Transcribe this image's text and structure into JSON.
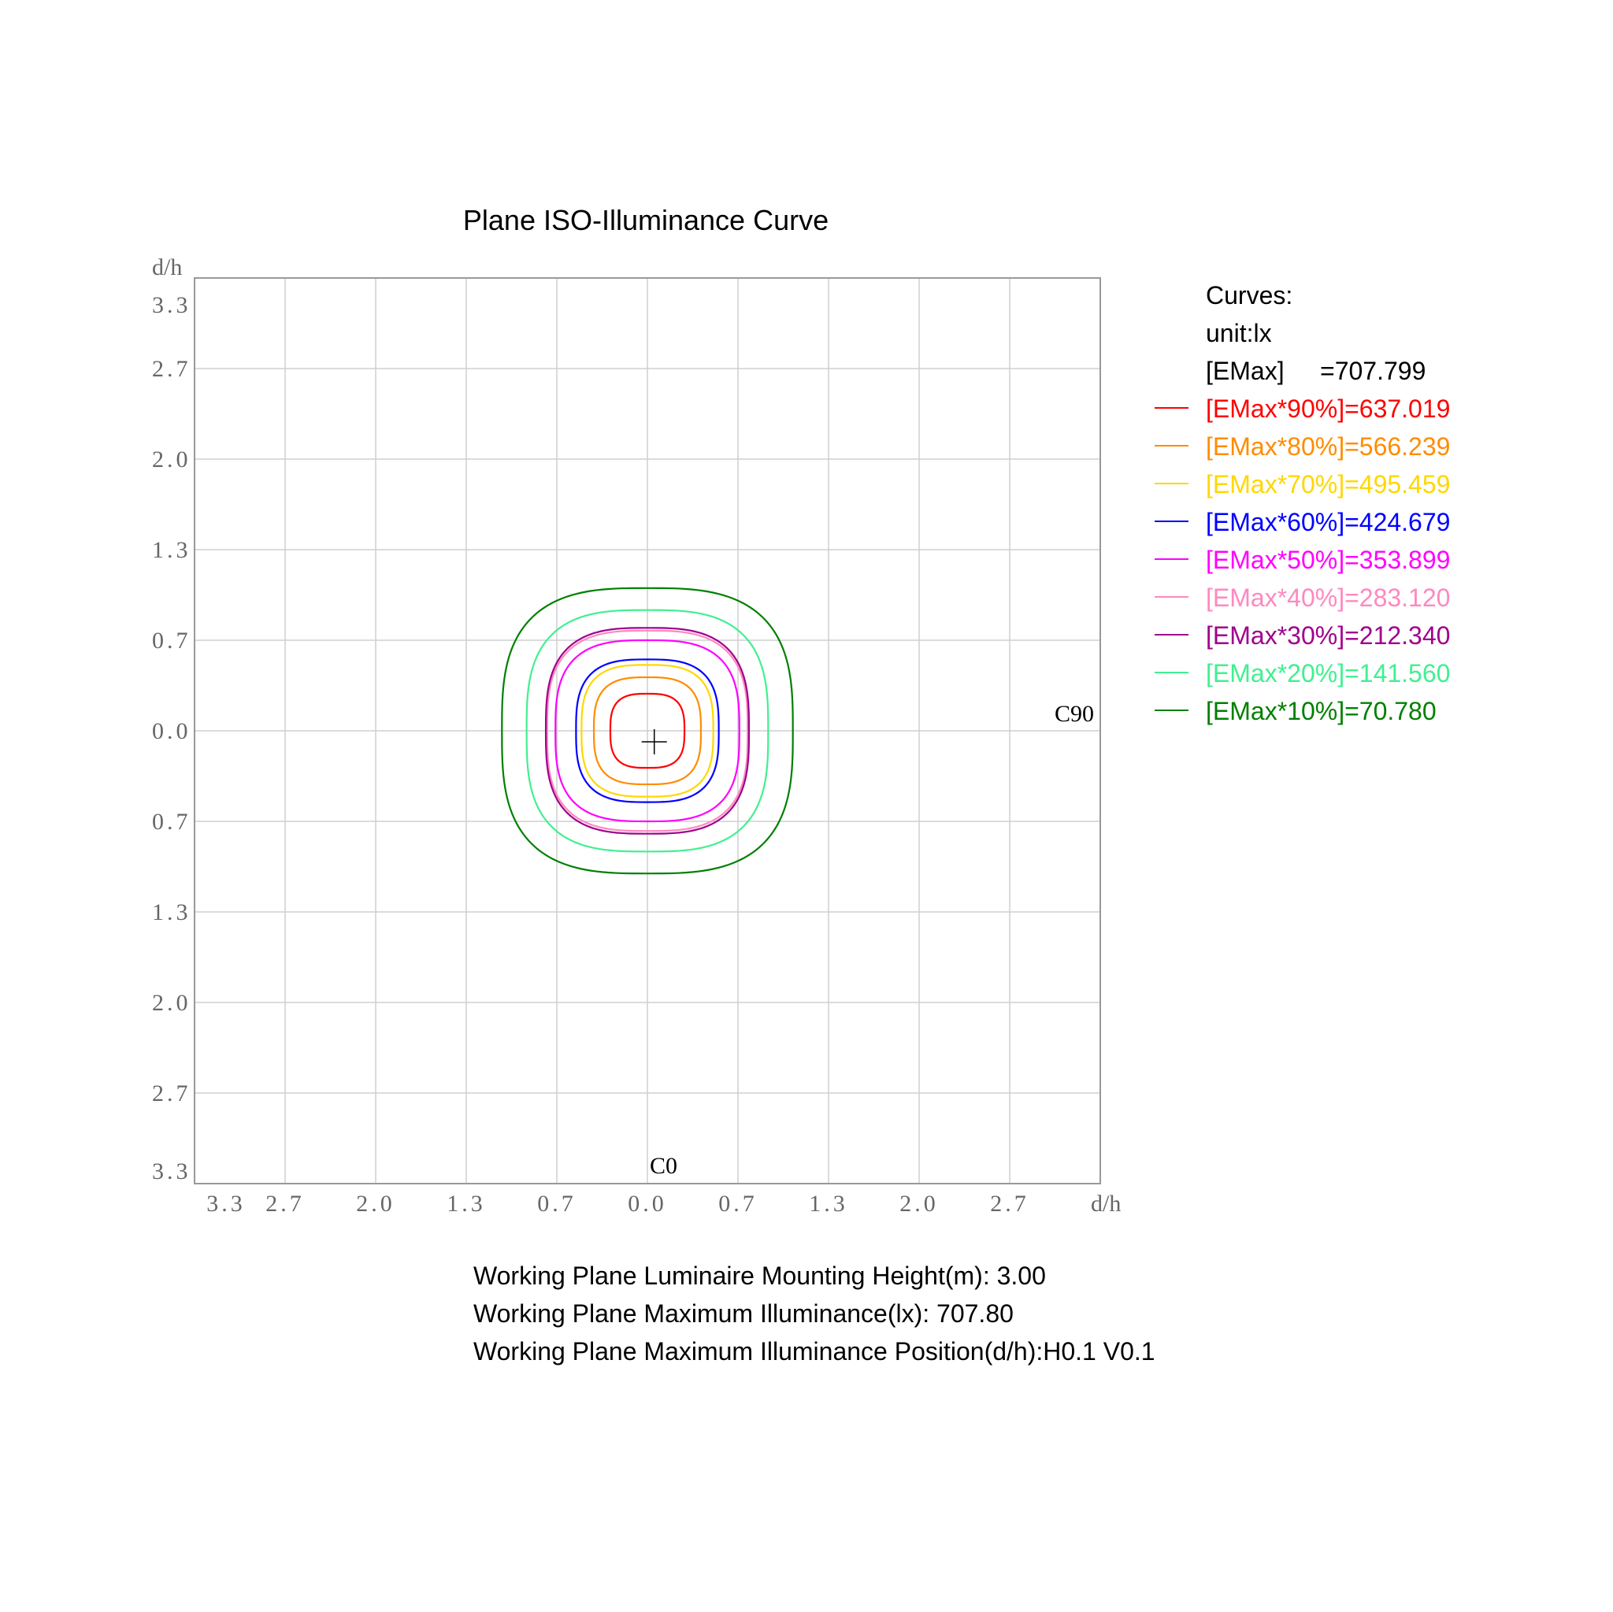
{
  "chart_data": {
    "type": "contour",
    "title": "Plane ISO-Illuminance Curve",
    "x_axis": {
      "label": "d/h",
      "tick_labels": [
        "3.3",
        "2.7",
        "2.0",
        "1.3",
        "0.7",
        "0.0",
        "0.7",
        "1.3",
        "2.0",
        "2.7"
      ],
      "range": [
        -3.3,
        3.3
      ],
      "direction_label": "C90"
    },
    "y_axis": {
      "label": "d/h",
      "tick_labels": [
        "3.3",
        "2.7",
        "2.0",
        "1.3",
        "0.7",
        "0.0",
        "0.7",
        "1.3",
        "2.0",
        "2.7",
        "3.3"
      ],
      "range": [
        -3.3,
        3.3
      ],
      "direction_label": "C0"
    },
    "grid": true,
    "legend": {
      "position": "right",
      "header": "Curves:",
      "unit": "unit:lx",
      "emax_label": "[EMax]",
      "emax_value": "=707.799",
      "entries": [
        {
          "label": "[EMax*90%]=637.019",
          "color": "#ff0000",
          "value": 637.019,
          "half_width": 0.27,
          "half_height": 0.27,
          "cx": 0.0,
          "cy": 0.0
        },
        {
          "label": "[EMax*80%]=566.239",
          "color": "#ff8c00",
          "value": 566.239,
          "half_width": 0.39,
          "half_height": 0.39,
          "cx": 0.0,
          "cy": 0.0
        },
        {
          "label": "[EMax*70%]=495.459",
          "color": "#ffd700",
          "value": 495.459,
          "half_width": 0.48,
          "half_height": 0.48,
          "cx": 0.0,
          "cy": 0.0
        },
        {
          "label": "[EMax*60%]=424.679",
          "color": "#0000ff",
          "value": 424.679,
          "half_width": 0.52,
          "half_height": 0.52,
          "cx": 0.0,
          "cy": 0.0
        },
        {
          "label": "[EMax*50%]=353.899",
          "color": "#ff00ff",
          "value": 353.899,
          "half_width": 0.67,
          "half_height": 0.66,
          "cx": 0.0,
          "cy": 0.0
        },
        {
          "label": "[EMax*40%]=283.120",
          "color": "#ff88c0",
          "value": 283.12,
          "half_width": 0.73,
          "half_height": 0.73,
          "cx": 0.0,
          "cy": 0.0
        },
        {
          "label": "[EMax*30%]=212.340",
          "color": "#a0008c",
          "value": 212.34,
          "half_width": 0.74,
          "half_height": 0.75,
          "cx": 0.0,
          "cy": 0.0
        },
        {
          "label": "[EMax*20%]=141.560",
          "color": "#40f090",
          "value": 141.56,
          "half_width": 0.88,
          "half_height": 0.88,
          "cx": 0.0,
          "cy": 0.0
        },
        {
          "label": "[EMax*10%]=70.780",
          "color": "#008000",
          "value": 70.78,
          "half_width": 1.06,
          "half_height": 1.04,
          "cx": 0.0,
          "cy": 0.0
        }
      ]
    },
    "max_position": {
      "x": 0.05,
      "y": -0.08
    },
    "footer": [
      "Working Plane Luminaire Mounting Height(m): 3.00",
      "Working Plane Maximum Illuminance(lx): 707.80",
      "Working Plane Maximum Illuminance Position(d/h):H0.1 V0.1"
    ]
  }
}
